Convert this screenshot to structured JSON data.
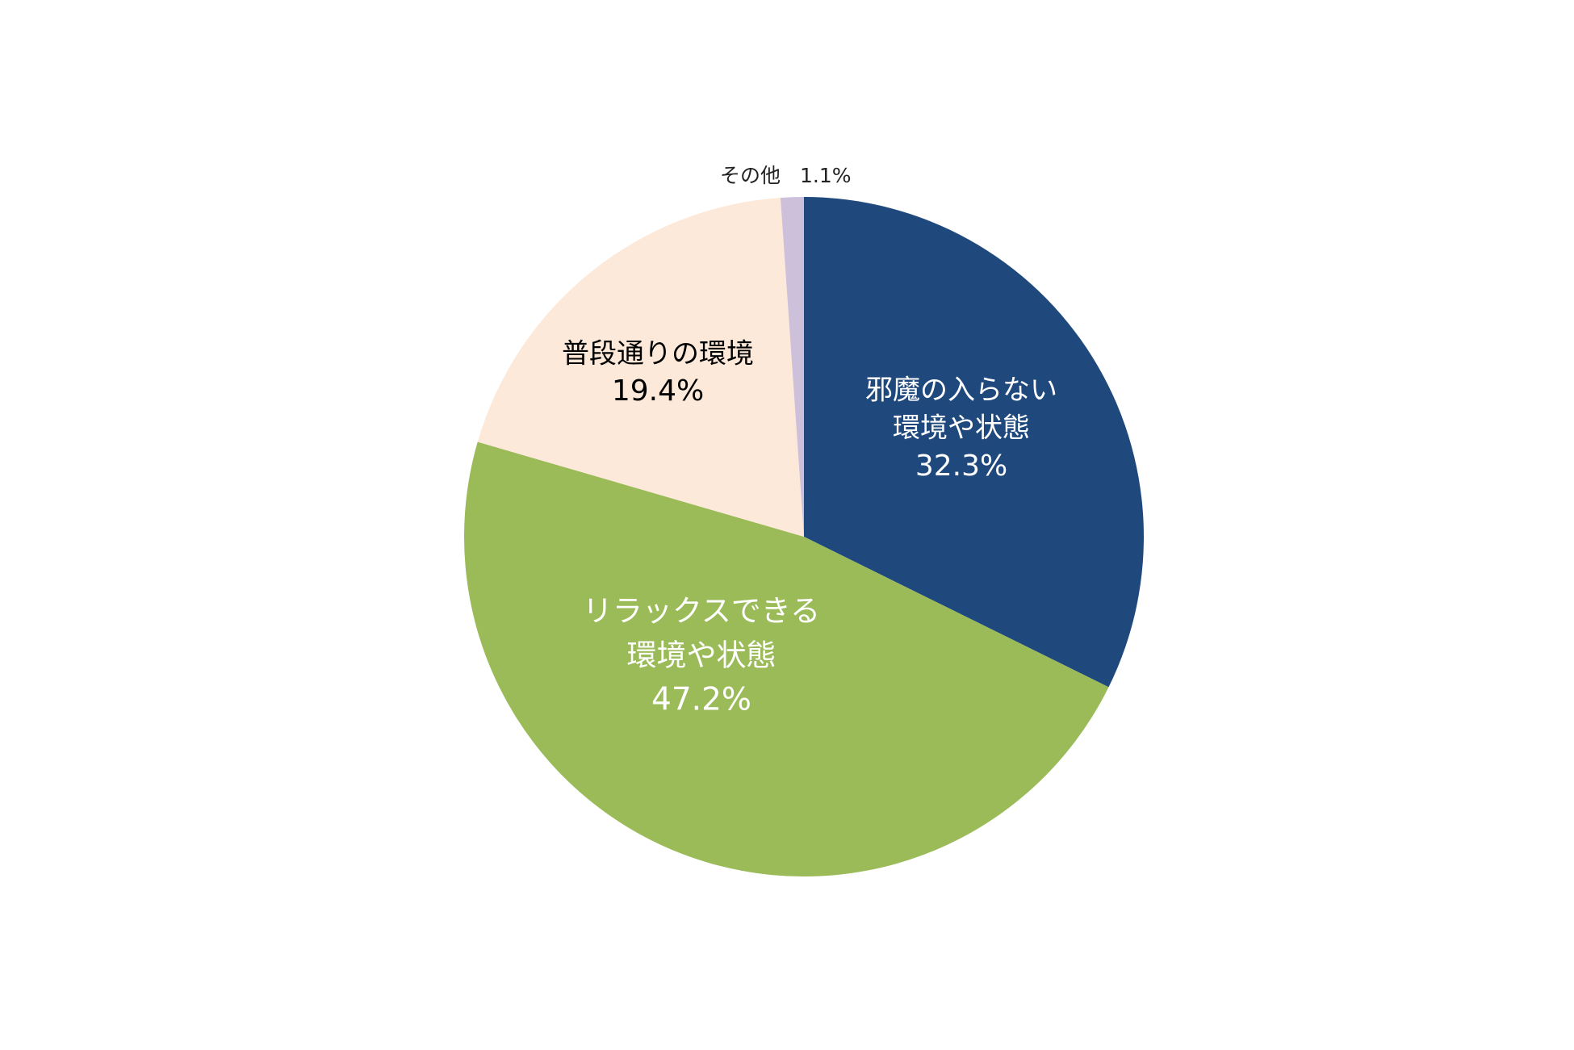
{
  "chart_data": {
    "type": "pie",
    "categories": [
      [
        "邪魔の入らない",
        "環境や状態"
      ],
      [
        "リラックスできる",
        "環境や状態"
      ],
      [
        "普段通りの環境"
      ],
      [
        "その他"
      ]
    ],
    "values": [
      32.3,
      47.2,
      19.4,
      1.1
    ],
    "value_labels": [
      "32.3%",
      "47.2%",
      "19.4%",
      "1.1%"
    ],
    "colors": [
      "#1f497d",
      "#9bbb59",
      "#fde9d9",
      "#ccc0da"
    ]
  }
}
